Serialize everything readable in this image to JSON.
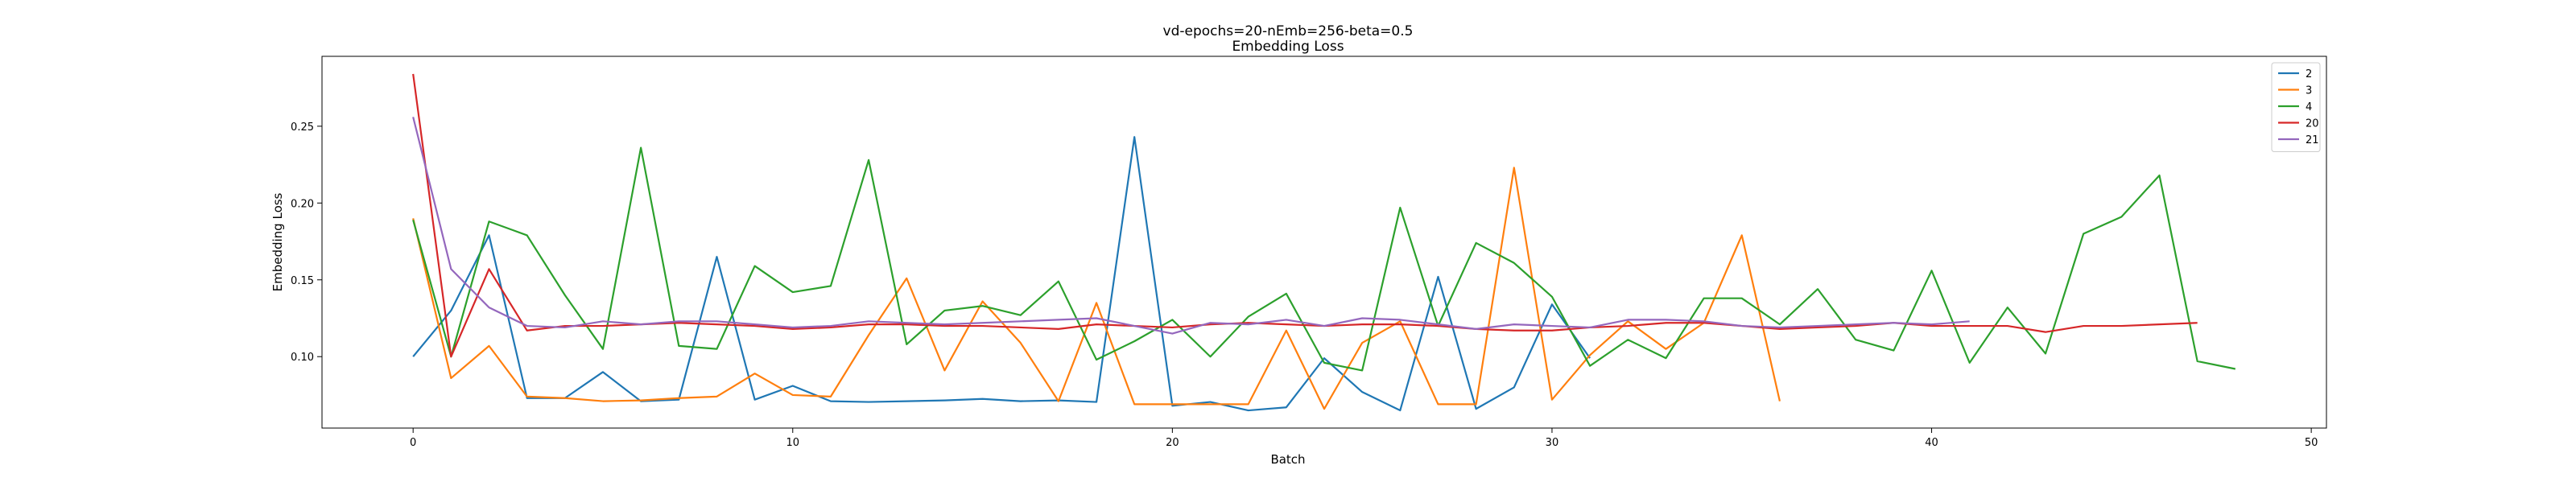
{
  "chart_data": {
    "type": "line",
    "title": "vd-epochs=20-nEmb=256-beta=0.5",
    "subtitle": "Embedding Loss",
    "xlabel": "Batch",
    "ylabel": "Embedding Loss",
    "xlim": [
      -2.4,
      50.4
    ],
    "ylim": [
      0.0535,
      0.2955
    ],
    "xticks": [
      0,
      10,
      20,
      30,
      40,
      50
    ],
    "yticks": [
      0.1,
      0.15,
      0.2,
      0.25
    ],
    "xtick_labels": [
      "0",
      "10",
      "20",
      "30",
      "40",
      "50"
    ],
    "ytick_labels": [
      "0.10",
      "0.15",
      "0.20",
      "0.25"
    ],
    "grid": false,
    "legend_position": "top-right",
    "series": [
      {
        "name": "2",
        "color": "#1f77b4",
        "values": [
          0.1,
          0.13,
          0.179,
          0.073,
          0.073,
          0.09,
          0.071,
          0.072,
          0.165,
          0.072,
          0.081,
          0.071,
          0.0705,
          0.071,
          0.0715,
          0.0725,
          0.071,
          0.0715,
          0.0705,
          0.243,
          0.068,
          0.0705,
          0.065,
          0.067,
          0.099,
          0.077,
          0.065,
          0.152,
          0.066,
          0.08,
          0.134,
          0.099
        ]
      },
      {
        "name": "3",
        "color": "#ff7f0e",
        "values": [
          0.19,
          0.086,
          0.107,
          0.074,
          0.073,
          0.071,
          0.0715,
          0.073,
          0.074,
          0.089,
          0.075,
          0.074,
          0.114,
          0.151,
          0.091,
          0.136,
          0.109,
          0.071,
          0.135,
          0.069,
          0.069,
          0.069,
          0.069,
          0.117,
          0.066,
          0.109,
          0.123,
          0.069,
          0.069,
          0.223,
          0.072,
          0.101,
          0.123,
          0.105,
          0.122,
          0.179,
          0.071
        ]
      },
      {
        "name": "4",
        "color": "#2ca02c",
        "values": [
          0.189,
          0.1,
          0.188,
          0.179,
          0.14,
          0.105,
          0.236,
          0.107,
          0.105,
          0.159,
          0.142,
          0.146,
          0.228,
          0.108,
          0.13,
          0.133,
          0.127,
          0.149,
          0.098,
          0.11,
          0.124,
          0.1,
          0.126,
          0.141,
          0.096,
          0.091,
          0.197,
          0.12,
          0.174,
          0.161,
          0.139,
          0.094,
          0.111,
          0.099,
          0.138,
          0.138,
          0.121,
          0.144,
          0.111,
          0.104,
          0.156,
          0.096,
          0.132,
          0.102,
          0.18,
          0.191,
          0.218,
          0.097,
          0.092
        ]
      },
      {
        "name": "20",
        "color": "#d62728",
        "values": [
          0.284,
          0.1,
          0.157,
          0.117,
          0.12,
          0.12,
          0.121,
          0.122,
          0.121,
          0.12,
          0.118,
          0.119,
          0.121,
          0.121,
          0.12,
          0.12,
          0.119,
          0.118,
          0.121,
          0.12,
          0.119,
          0.121,
          0.122,
          0.121,
          0.12,
          0.121,
          0.121,
          0.12,
          0.118,
          0.117,
          0.117,
          0.119,
          0.12,
          0.122,
          0.122,
          0.12,
          0.118,
          0.119,
          0.12,
          0.122,
          0.12,
          0.12,
          0.12,
          0.116,
          0.12,
          0.12,
          0.121,
          0.122
        ]
      },
      {
        "name": "21",
        "color": "#9467bd",
        "values": [
          0.256,
          0.157,
          0.132,
          0.12,
          0.119,
          0.123,
          0.121,
          0.123,
          0.123,
          0.121,
          0.119,
          0.12,
          0.123,
          0.122,
          0.121,
          0.122,
          0.123,
          0.124,
          0.125,
          0.12,
          0.115,
          0.122,
          0.121,
          0.124,
          0.12,
          0.125,
          0.124,
          0.121,
          0.118,
          0.121,
          0.12,
          0.119,
          0.124,
          0.124,
          0.123,
          0.12,
          0.119,
          0.12,
          0.121,
          0.122,
          0.121,
          0.123
        ]
      }
    ]
  }
}
